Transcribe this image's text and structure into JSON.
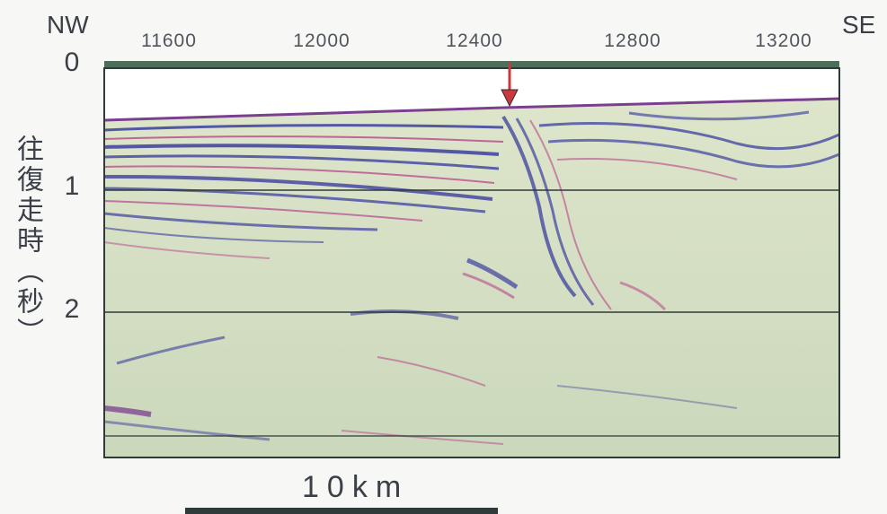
{
  "direction": {
    "left": "NW",
    "right": "SE"
  },
  "x_ticks": [
    "11600",
    "12000",
    "12400",
    "12800",
    "13200"
  ],
  "y_axis": {
    "title": "往復走時（秒）",
    "ticks": [
      "0",
      "1",
      "2"
    ]
  },
  "scale_bar": {
    "label": "10km"
  },
  "colors": {
    "background": "#f7f7f5",
    "section_fill": "#d4e0c2",
    "reflector_blue": "#3c3f9e",
    "reflector_magenta": "#b8468c",
    "frame": "#2f3a3a",
    "arrow": "#c8383c"
  }
}
